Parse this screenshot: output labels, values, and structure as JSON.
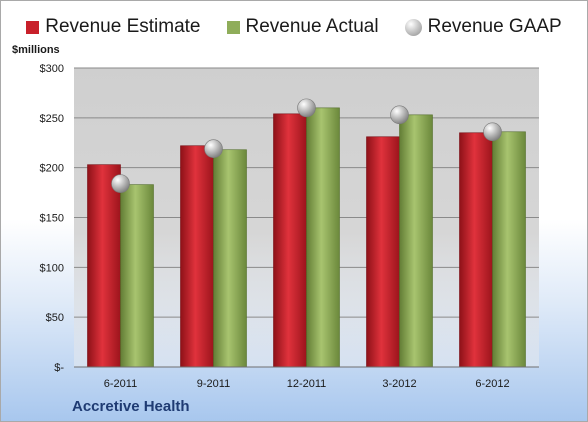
{
  "legend": [
    {
      "label": "Revenue Estimate",
      "color": "#c8202a",
      "shape": "square"
    },
    {
      "label": "Revenue Actual",
      "color": "#8fad5a",
      "shape": "square"
    },
    {
      "label": "Revenue GAAP",
      "color": "#b5b5b5",
      "shape": "circle"
    }
  ],
  "y_unit_label": "$millions",
  "company": "Accretive Health",
  "colors": {
    "estimate": "#c8202a",
    "actual": "#8fad5a",
    "gaap": "#b5b5b5",
    "plot_bg": "#d4d4d4"
  },
  "chart_data": {
    "type": "bar",
    "categories": [
      "6-2011",
      "9-2011",
      "12-2011",
      "3-2012",
      "6-2012"
    ],
    "series": [
      {
        "name": "Revenue Estimate",
        "values": [
          203,
          222,
          254,
          231,
          235
        ]
      },
      {
        "name": "Revenue Actual",
        "values": [
          183,
          218,
          260,
          253,
          236
        ]
      },
      {
        "name": "Revenue GAAP",
        "values": [
          184,
          219,
          260,
          253,
          236
        ],
        "marker": "circle"
      }
    ],
    "ylim": [
      0,
      300
    ],
    "y_ticks": [
      0,
      50,
      100,
      150,
      200,
      250,
      300
    ],
    "y_tick_labels": [
      "$-",
      "$50",
      "$100",
      "$150",
      "$200",
      "$250",
      "$300"
    ],
    "ylabel": "$millions",
    "legend_position": "top",
    "grid": true
  }
}
